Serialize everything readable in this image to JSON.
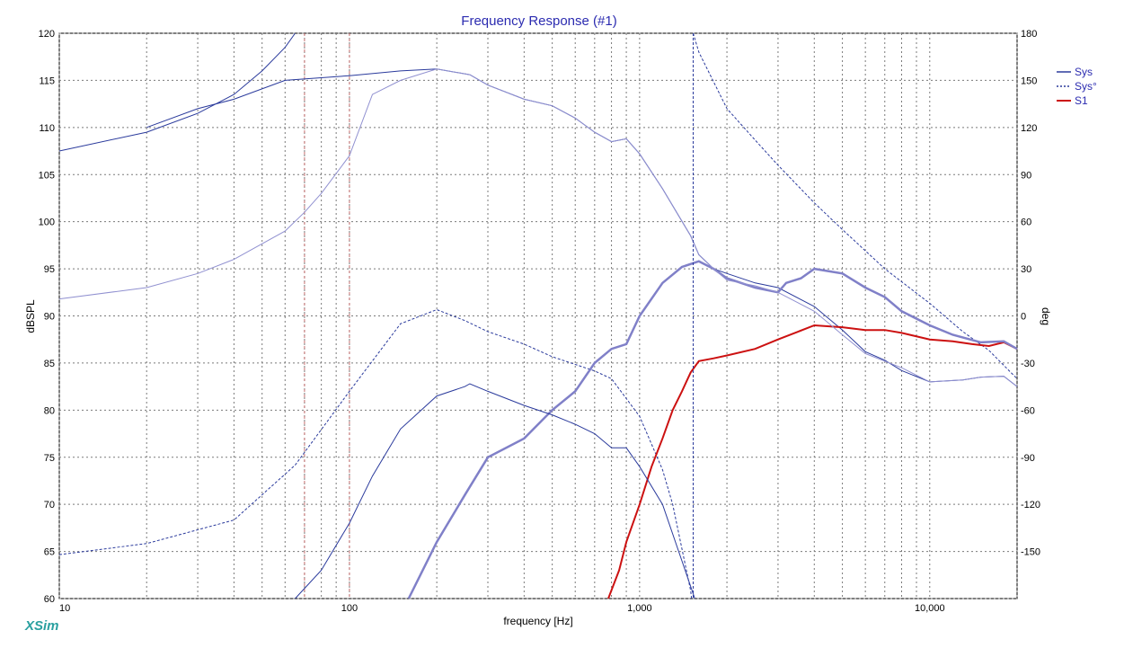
{
  "app": {
    "brand": "XSim"
  },
  "chart_data": {
    "type": "line",
    "title": "Frequency Response (#1)",
    "xlabel": "frequency [Hz]",
    "ylabel": "dBSPL",
    "y2label": "deg",
    "xscale": "log",
    "xlim": [
      10,
      20000
    ],
    "ylim": [
      60,
      120
    ],
    "y2lim": [
      -180,
      180
    ],
    "grid": true,
    "legend_position": "right",
    "x_ticks": [
      {
        "value": 10,
        "label": "10"
      },
      {
        "value": 100,
        "label": "100"
      },
      {
        "value": 1000,
        "label": "1,000"
      },
      {
        "value": 10000,
        "label": "10,000"
      }
    ],
    "y_ticks": [
      "60",
      "65",
      "70",
      "75",
      "80",
      "85",
      "90",
      "95",
      "100",
      "105",
      "110",
      "115",
      "120"
    ],
    "y2_ticks": [
      "-150",
      "-120",
      "-90",
      "-60",
      "-30",
      "0",
      "30",
      "60",
      "90",
      "120",
      "150",
      "180"
    ],
    "colors": {
      "background": "#ffffff",
      "grid": "#7a7a7a",
      "vertical_marker": "#c87070"
    },
    "vertical_markers_hz": [
      70,
      100
    ],
    "series": [
      {
        "name": "Sys",
        "style": "solid",
        "color": "#2a3a9c",
        "axis": "left",
        "points": [
          [
            20,
            110
          ],
          [
            30,
            112
          ],
          [
            40,
            113
          ],
          [
            60,
            115
          ],
          [
            100,
            115.5
          ],
          [
            150,
            116
          ],
          [
            200,
            116.2
          ],
          [
            260,
            115.6
          ],
          [
            300,
            114.5
          ],
          [
            400,
            113
          ],
          [
            500,
            112.3
          ],
          [
            600,
            111
          ],
          [
            700,
            109.5
          ],
          [
            800,
            108.5
          ],
          [
            900,
            108.8
          ],
          [
            1000,
            107.2
          ],
          [
            1200,
            103.5
          ],
          [
            1500,
            98.5
          ],
          [
            1600,
            96.5
          ],
          [
            1800,
            95
          ],
          [
            2000,
            94.5
          ],
          [
            2500,
            93.5
          ],
          [
            3000,
            93
          ],
          [
            4000,
            91
          ],
          [
            5000,
            88.5
          ],
          [
            6000,
            86.2
          ],
          [
            7000,
            85.3
          ],
          [
            8000,
            84.2
          ],
          [
            10000,
            83
          ],
          [
            13000,
            83.2
          ],
          [
            15000,
            83.5
          ],
          [
            18000,
            83.6
          ],
          [
            20000,
            82.5
          ]
        ]
      },
      {
        "name": "Sys°",
        "style": "dashed",
        "color": "#2a3a9c",
        "axis": "right",
        "points": [
          [
            10,
            -152
          ],
          [
            20,
            -145
          ],
          [
            40,
            -130
          ],
          [
            65,
            -95
          ],
          [
            100,
            -48
          ],
          [
            150,
            -5
          ],
          [
            200,
            4
          ],
          [
            250,
            -3
          ],
          [
            300,
            -10
          ],
          [
            400,
            -18
          ],
          [
            500,
            -26
          ],
          [
            700,
            -35
          ],
          [
            800,
            -40
          ],
          [
            1000,
            -64
          ],
          [
            1200,
            -98
          ],
          [
            1300,
            -120
          ],
          [
            1500,
            -175
          ],
          [
            1510,
            -180
          ],
          [
            1530,
            180
          ],
          [
            1600,
            168
          ],
          [
            2000,
            132
          ],
          [
            2500,
            112
          ],
          [
            3000,
            96
          ],
          [
            4000,
            72
          ],
          [
            5000,
            55
          ],
          [
            7000,
            30
          ],
          [
            10000,
            8
          ],
          [
            13000,
            -10
          ],
          [
            16000,
            -22
          ],
          [
            20000,
            -40
          ]
        ]
      },
      {
        "name": "S1",
        "style": "solid",
        "color": "#cc1111",
        "axis": "left",
        "points": [
          [
            780,
            60
          ],
          [
            850,
            63
          ],
          [
            900,
            66
          ],
          [
            1000,
            70
          ],
          [
            1100,
            74
          ],
          [
            1200,
            77
          ],
          [
            1300,
            80
          ],
          [
            1400,
            82
          ],
          [
            1500,
            84
          ],
          [
            1600,
            85.2
          ],
          [
            1800,
            85.5
          ],
          [
            2000,
            85.8
          ],
          [
            2500,
            86.5
          ],
          [
            3000,
            87.5
          ],
          [
            3500,
            88.3
          ],
          [
            4000,
            89
          ],
          [
            5000,
            88.8
          ],
          [
            6000,
            88.5
          ],
          [
            7000,
            88.5
          ],
          [
            8000,
            88.2
          ],
          [
            10000,
            87.5
          ],
          [
            12000,
            87.3
          ],
          [
            14000,
            87
          ],
          [
            16000,
            86.8
          ],
          [
            18000,
            87.2
          ],
          [
            20000,
            86.5
          ]
        ]
      },
      {
        "name": "",
        "style": "solid",
        "color": "#8080c8",
        "axis": "left",
        "points": [
          [
            160,
            60
          ],
          [
            200,
            66
          ],
          [
            250,
            71
          ],
          [
            300,
            75
          ],
          [
            400,
            77
          ],
          [
            500,
            80
          ],
          [
            600,
            82
          ],
          [
            700,
            85
          ],
          [
            800,
            86.5
          ],
          [
            900,
            87
          ],
          [
            1000,
            90
          ],
          [
            1200,
            93.5
          ],
          [
            1400,
            95.2
          ],
          [
            1600,
            95.8
          ],
          [
            1800,
            95
          ],
          [
            2000,
            94
          ],
          [
            2500,
            93
          ],
          [
            3000,
            92.5
          ],
          [
            3200,
            93.5
          ],
          [
            3600,
            94
          ],
          [
            4000,
            95
          ],
          [
            5000,
            94.5
          ],
          [
            6000,
            93
          ],
          [
            7000,
            92
          ],
          [
            8000,
            90.5
          ],
          [
            10000,
            89
          ],
          [
            12000,
            88
          ],
          [
            15000,
            87.2
          ],
          [
            18000,
            87.3
          ],
          [
            20000,
            86.5
          ]
        ]
      },
      {
        "name": "",
        "style": "solid",
        "color": "#9090d0",
        "axis": "left",
        "points": [
          [
            10,
            91.8
          ],
          [
            20,
            93
          ],
          [
            30,
            94.5
          ],
          [
            40,
            96
          ],
          [
            60,
            99
          ],
          [
            70,
            101
          ],
          [
            80,
            103
          ],
          [
            100,
            107
          ],
          [
            120,
            113.5
          ],
          [
            150,
            115
          ],
          [
            200,
            116.2
          ],
          [
            260,
            115.6
          ],
          [
            300,
            114.5
          ],
          [
            400,
            113
          ],
          [
            500,
            112.3
          ],
          [
            600,
            111
          ],
          [
            700,
            109.5
          ],
          [
            800,
            108.5
          ],
          [
            900,
            108.8
          ],
          [
            1000,
            107.2
          ],
          [
            1200,
            103.5
          ],
          [
            1500,
            98.5
          ],
          [
            1600,
            96.5
          ],
          [
            1800,
            95
          ],
          [
            2000,
            93.8
          ],
          [
            2500,
            93.2
          ],
          [
            3000,
            92.5
          ],
          [
            4000,
            90.5
          ],
          [
            5000,
            88
          ],
          [
            6000,
            86
          ],
          [
            8000,
            84.5
          ],
          [
            10000,
            83
          ],
          [
            13000,
            83.2
          ],
          [
            15000,
            83.5
          ],
          [
            18000,
            83.6
          ],
          [
            20000,
            82.5
          ]
        ]
      },
      {
        "name": "",
        "style": "solid",
        "color": "#2a3a9c",
        "axis": "left",
        "points": [
          [
            10,
            107.5
          ],
          [
            20,
            109.5
          ],
          [
            30,
            111.5
          ],
          [
            40,
            113.5
          ],
          [
            50,
            116
          ],
          [
            60,
            118.5
          ],
          [
            65,
            120
          ]
        ]
      },
      {
        "name": "",
        "style": "solid",
        "color": "#2a3a9c",
        "axis": "left",
        "points": [
          [
            65,
            60
          ],
          [
            80,
            63
          ],
          [
            100,
            68
          ],
          [
            120,
            73
          ],
          [
            150,
            78
          ],
          [
            200,
            81.5
          ],
          [
            250,
            82.5
          ],
          [
            260,
            82.8
          ],
          [
            300,
            82
          ],
          [
            400,
            80.5
          ],
          [
            500,
            79.5
          ],
          [
            600,
            78.5
          ],
          [
            700,
            77.5
          ],
          [
            800,
            76
          ],
          [
            900,
            76
          ],
          [
            1000,
            74
          ],
          [
            1200,
            70
          ],
          [
            1400,
            64
          ],
          [
            1550,
            60
          ]
        ]
      }
    ]
  }
}
